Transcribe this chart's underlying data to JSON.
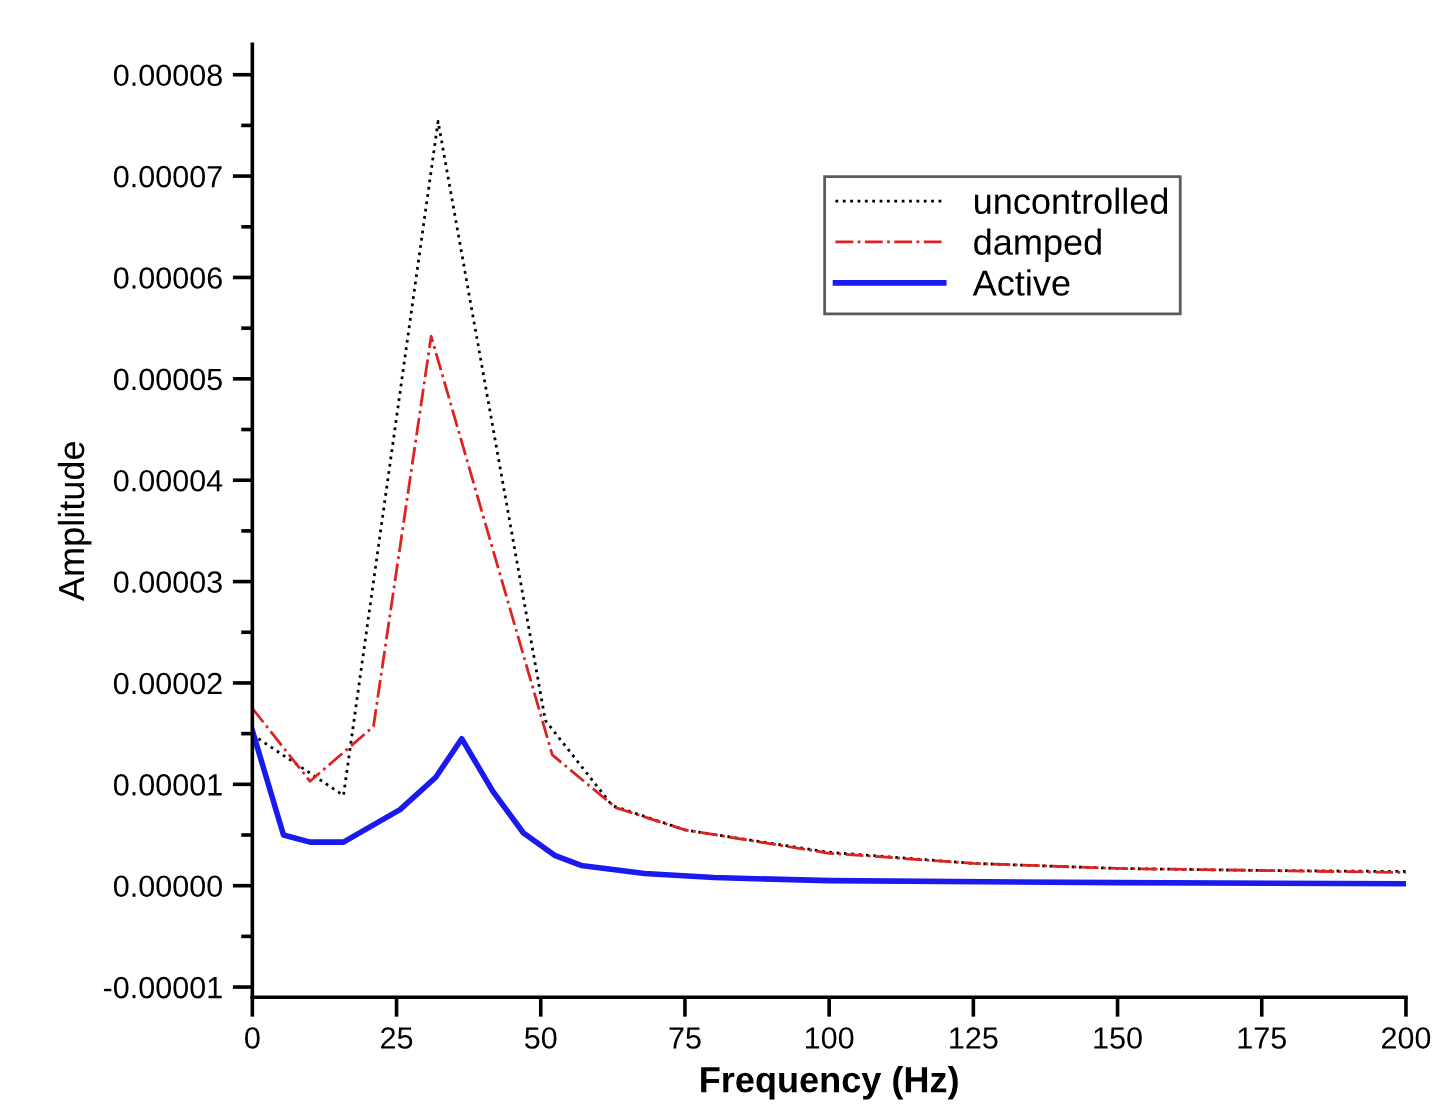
{
  "chart_data": {
    "type": "line",
    "xlabel": "Frequency (Hz)",
    "ylabel": "Amplitude",
    "xlim": [
      0,
      200
    ],
    "xticks": [
      0,
      25,
      50,
      75,
      100,
      125,
      150,
      175,
      200
    ],
    "ylim": [
      -1.1e-05,
      8.3e-05
    ],
    "yticks": [
      {
        "value": -1e-05,
        "label": "-0.00001"
      },
      {
        "value": -5e-06,
        "label": null
      },
      {
        "value": 0,
        "label": "0.00000"
      },
      {
        "value": 5e-06,
        "label": null
      },
      {
        "value": 1e-05,
        "label": "0.00001"
      },
      {
        "value": 1.5e-05,
        "label": null
      },
      {
        "value": 2e-05,
        "label": "0.00002"
      },
      {
        "value": 2.5e-05,
        "label": null
      },
      {
        "value": 3e-05,
        "label": "0.00003"
      },
      {
        "value": 3.5e-05,
        "label": null
      },
      {
        "value": 4e-05,
        "label": "0.00004"
      },
      {
        "value": 4.5e-05,
        "label": null
      },
      {
        "value": 5e-05,
        "label": "0.00005"
      },
      {
        "value": 5.5e-05,
        "label": null
      },
      {
        "value": 6e-05,
        "label": "0.00006"
      },
      {
        "value": 6.5e-05,
        "label": null
      },
      {
        "value": 7e-05,
        "label": "0.00007"
      },
      {
        "value": 7.5e-05,
        "label": null
      },
      {
        "value": 8e-05,
        "label": "0.00008"
      }
    ],
    "grid": false,
    "legend": "top right",
    "marker": "none",
    "series": [
      {
        "name": "uncontrolled",
        "color": "#000000",
        "line_style": "dotted",
        "x": [
          0,
          15.8,
          32.2,
          50.8,
          62.4,
          75,
          100,
          125,
          150,
          175,
          200
        ],
        "values": [
          1.49e-05,
          8.9e-06,
          7.54e-05,
          1.63e-05,
          7.9e-06,
          5.5e-06,
          3.3e-06,
          2.2e-06,
          1.7e-06,
          1.5e-06,
          1.4e-06
        ]
      },
      {
        "name": "damped",
        "color": "#dd2222",
        "line_style": "dashdot",
        "x": [
          0,
          10,
          21,
          31,
          52,
          63,
          75,
          100,
          125,
          150,
          175,
          200
        ],
        "values": [
          1.75e-05,
          1.03e-05,
          1.57e-05,
          5.42e-05,
          1.29e-05,
          7.7e-06,
          5.5e-06,
          3.2e-06,
          2.2e-06,
          1.7e-06,
          1.5e-06,
          1.3e-06
        ]
      },
      {
        "name": "Active",
        "color": "#1a1aee",
        "line_style": "solid",
        "x": [
          0,
          5.4,
          10,
          15.8,
          25.6,
          31.8,
          36.3,
          41.7,
          47,
          52.4,
          57,
          68,
          80,
          100,
          150,
          200
        ],
        "values": [
          1.53e-05,
          5e-06,
          4.3e-06,
          4.3e-06,
          7.5e-06,
          1.07e-05,
          1.45e-05,
          9.3e-06,
          5.2e-06,
          3e-06,
          2e-06,
          1.2e-06,
          8e-07,
          5e-07,
          3e-07,
          2e-07
        ]
      }
    ]
  }
}
